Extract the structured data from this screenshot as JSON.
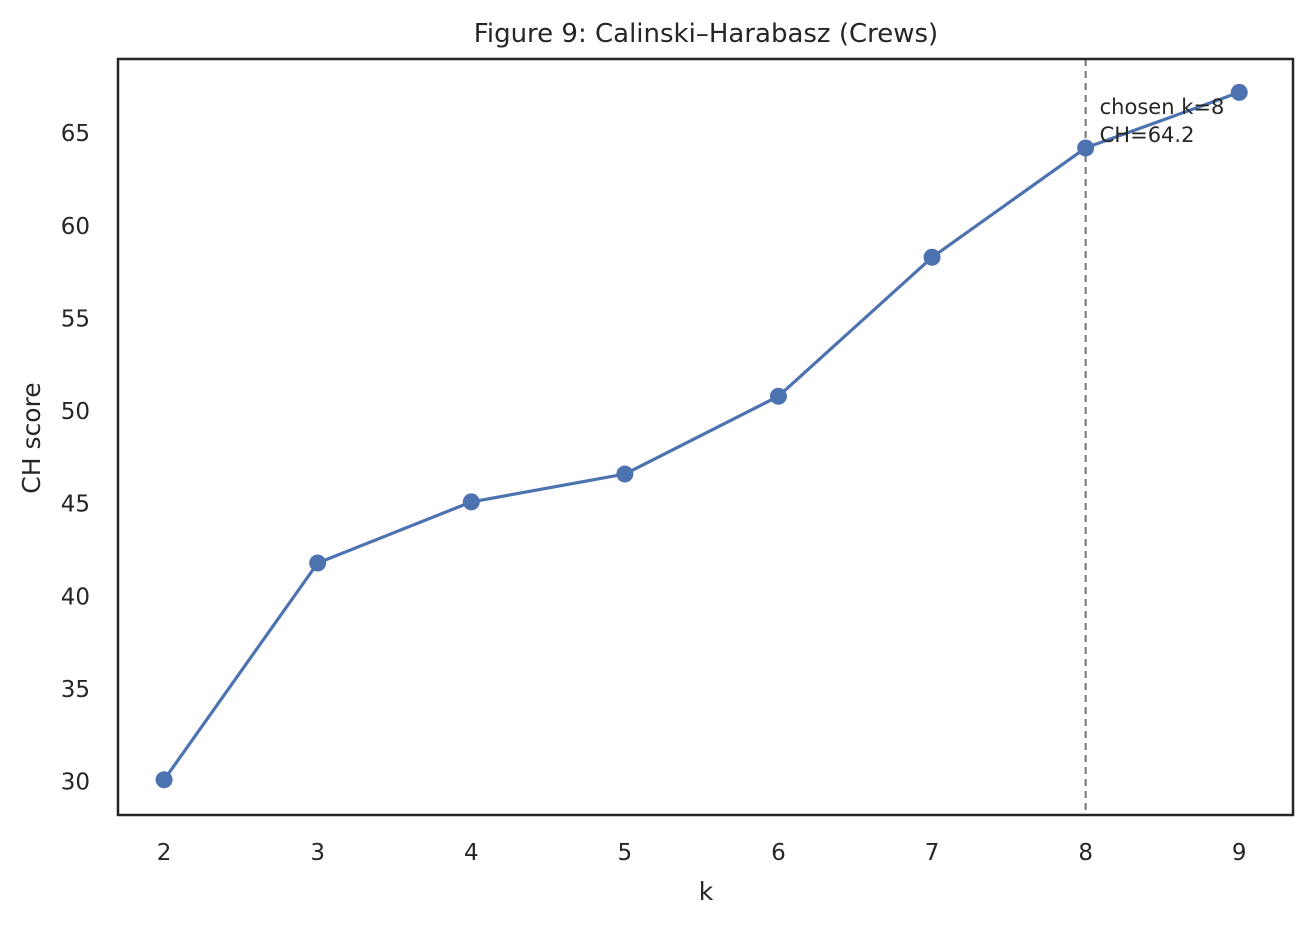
{
  "chart_data": {
    "type": "line",
    "title": "Figure 9: Calinski–Harabasz (Crews)",
    "xlabel": "k",
    "ylabel": "CH score",
    "x": [
      2,
      3,
      4,
      5,
      6,
      7,
      8,
      9
    ],
    "series": [
      {
        "values": [
          30.1,
          41.8,
          45.1,
          46.6,
          50.8,
          58.3,
          64.2,
          67.2
        ]
      }
    ],
    "xlim": [
      1.7,
      9.35
    ],
    "ylim": [
      28.2,
      69.0
    ],
    "xticks": [
      2,
      3,
      4,
      5,
      6,
      7,
      8,
      9
    ],
    "yticks": [
      30,
      35,
      40,
      45,
      50,
      55,
      60,
      65
    ],
    "grid": false,
    "line_color": "#4c72b0",
    "reference_line": {
      "x": 8,
      "style": "dashed",
      "color": "#808080"
    },
    "annotation": {
      "x": 8,
      "lines": [
        "chosen k=8",
        "CH=64.2"
      ]
    }
  }
}
